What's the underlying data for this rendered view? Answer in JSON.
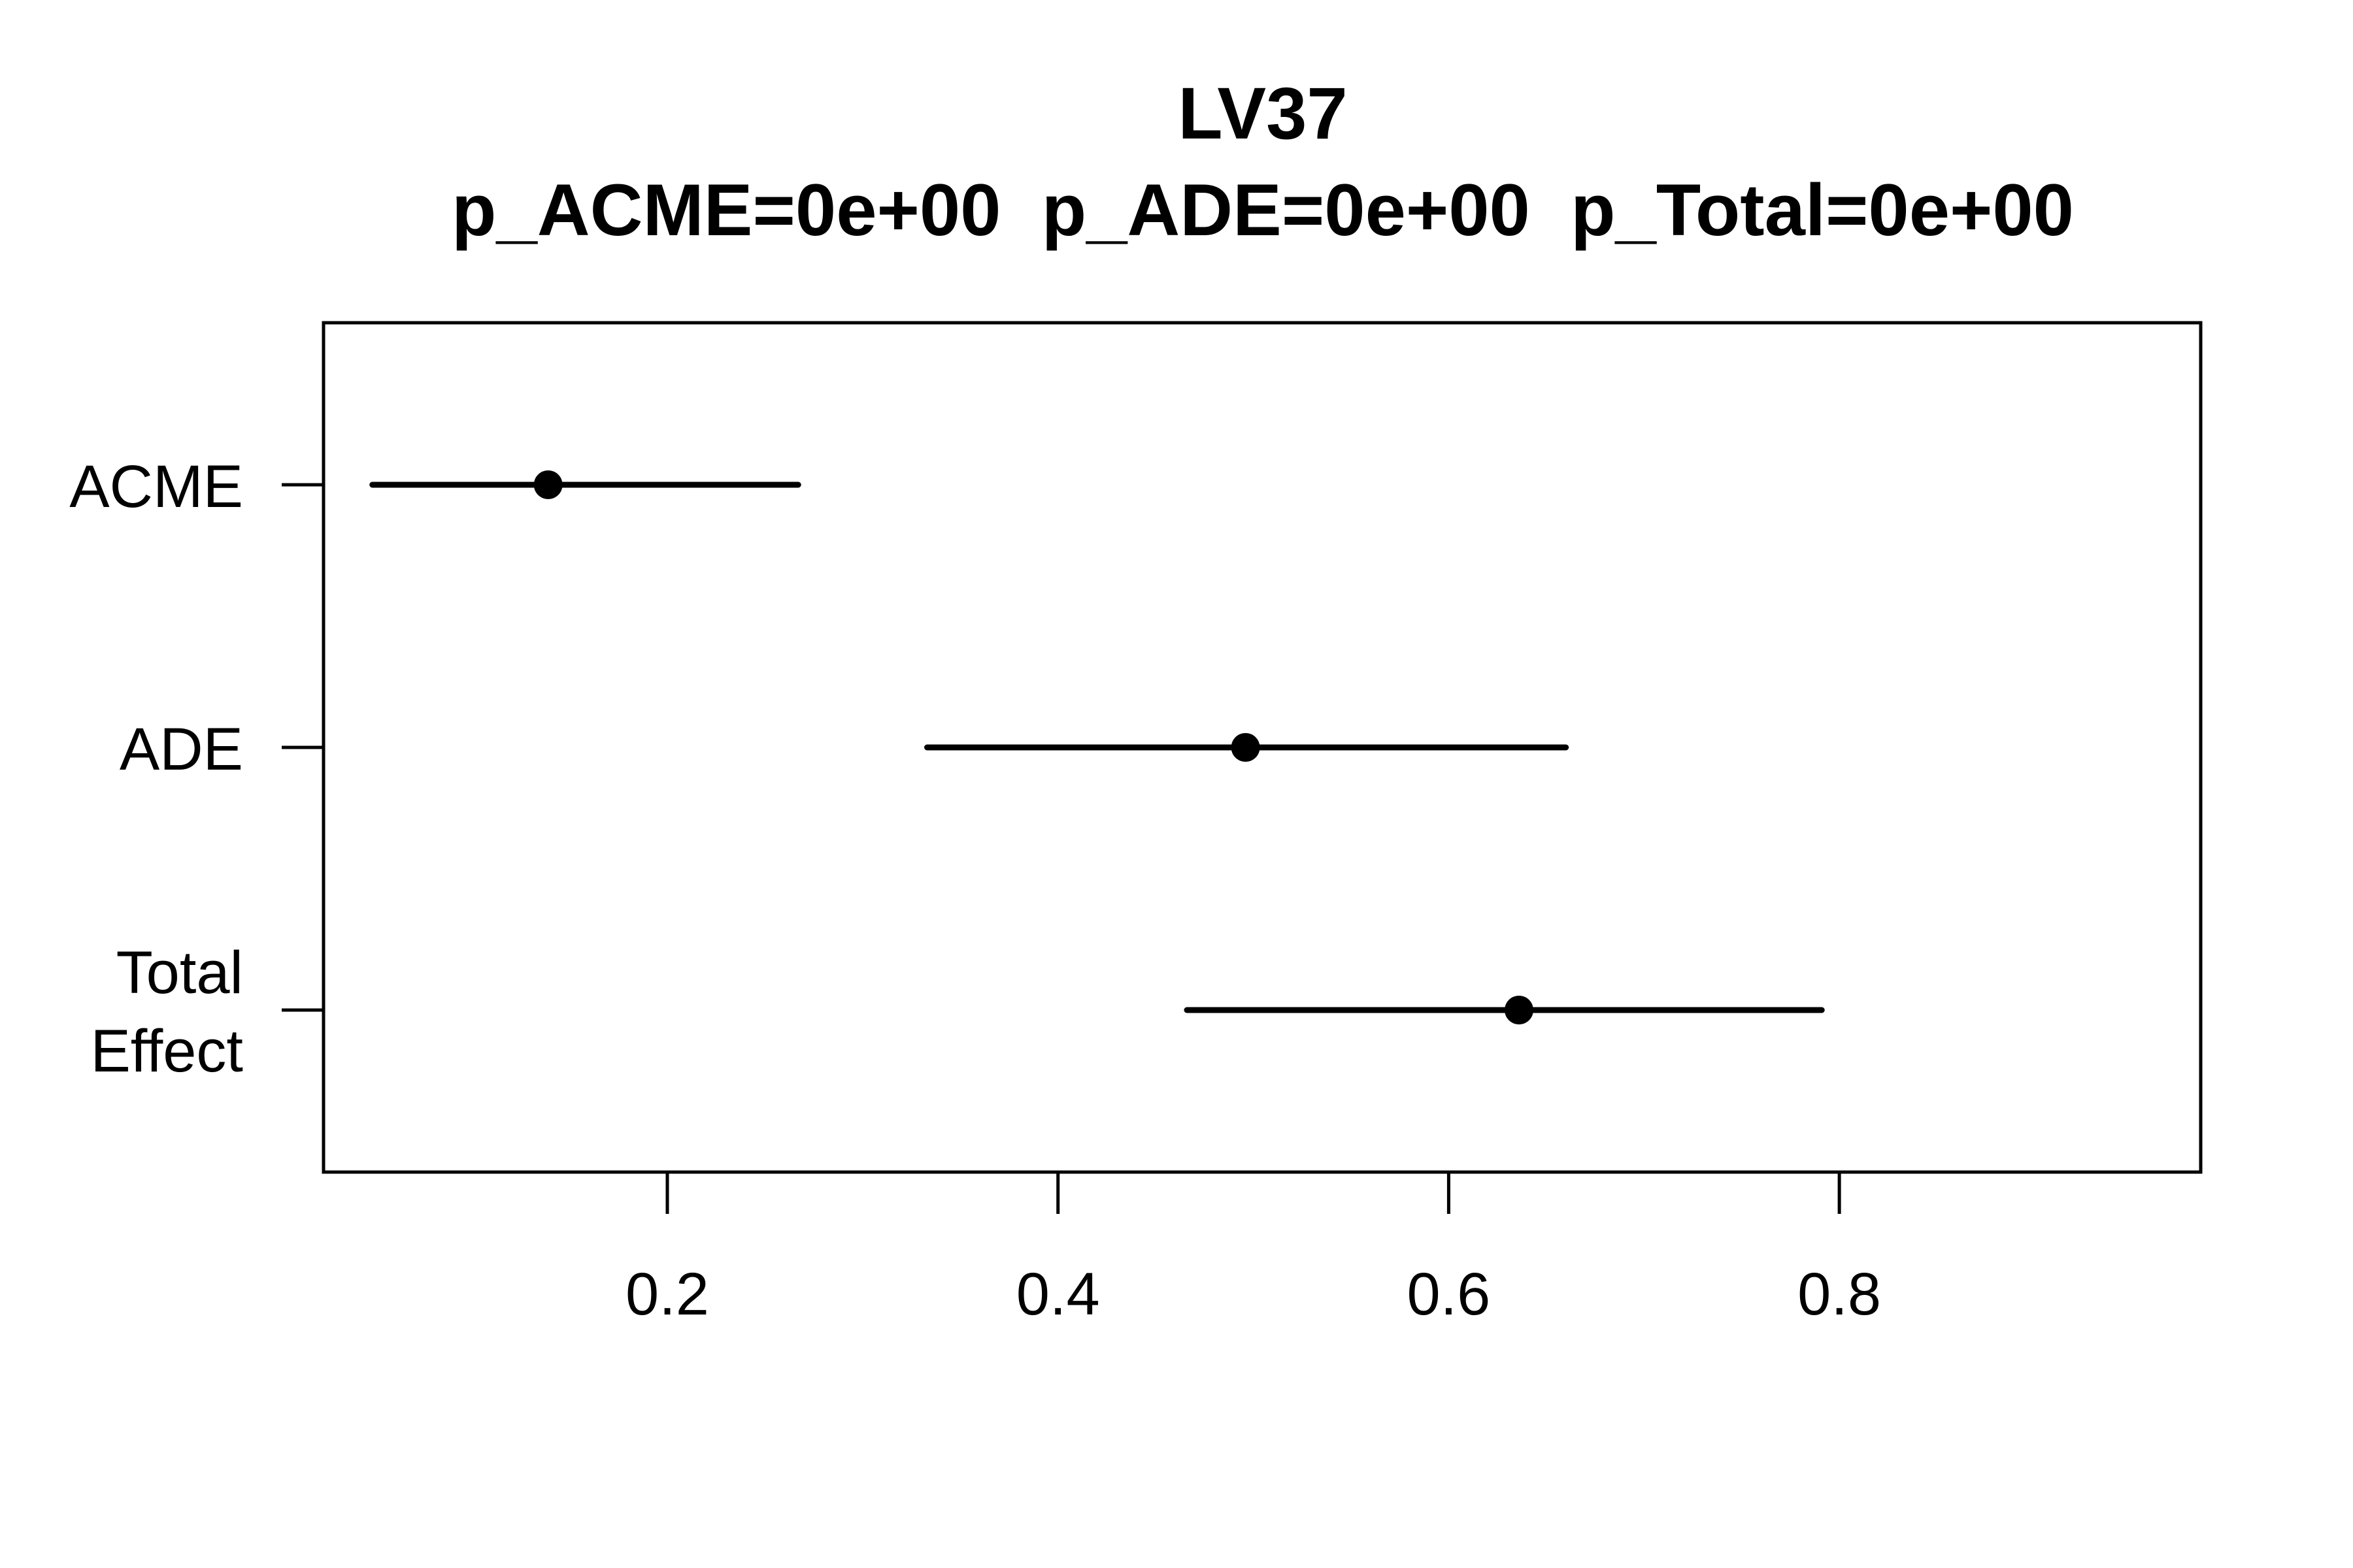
{
  "chart_data": {
    "type": "scatter",
    "title": "LV37",
    "subtitle": "p_ACME=0e+00  p_ADE=0e+00  p_Total=0e+00",
    "xlabel": "",
    "ylabel": "",
    "xlim": [
      0.024,
      0.985
    ],
    "xticks": [
      0.2,
      0.4,
      0.6,
      0.8
    ],
    "xtick_labels": [
      "0.2",
      "0.4",
      "0.6",
      "0.8"
    ],
    "grid": false,
    "legend": "none",
    "categories": [
      {
        "label": [
          "ACME"
        ],
        "estimate": 0.139,
        "lower": 0.049,
        "upper": 0.267
      },
      {
        "label": [
          "ADE"
        ],
        "estimate": 0.496,
        "lower": 0.333,
        "upper": 0.66
      },
      {
        "label": [
          "Total",
          "Effect"
        ],
        "estimate": 0.636,
        "lower": 0.466,
        "upper": 0.791
      }
    ],
    "color": "#000000"
  }
}
